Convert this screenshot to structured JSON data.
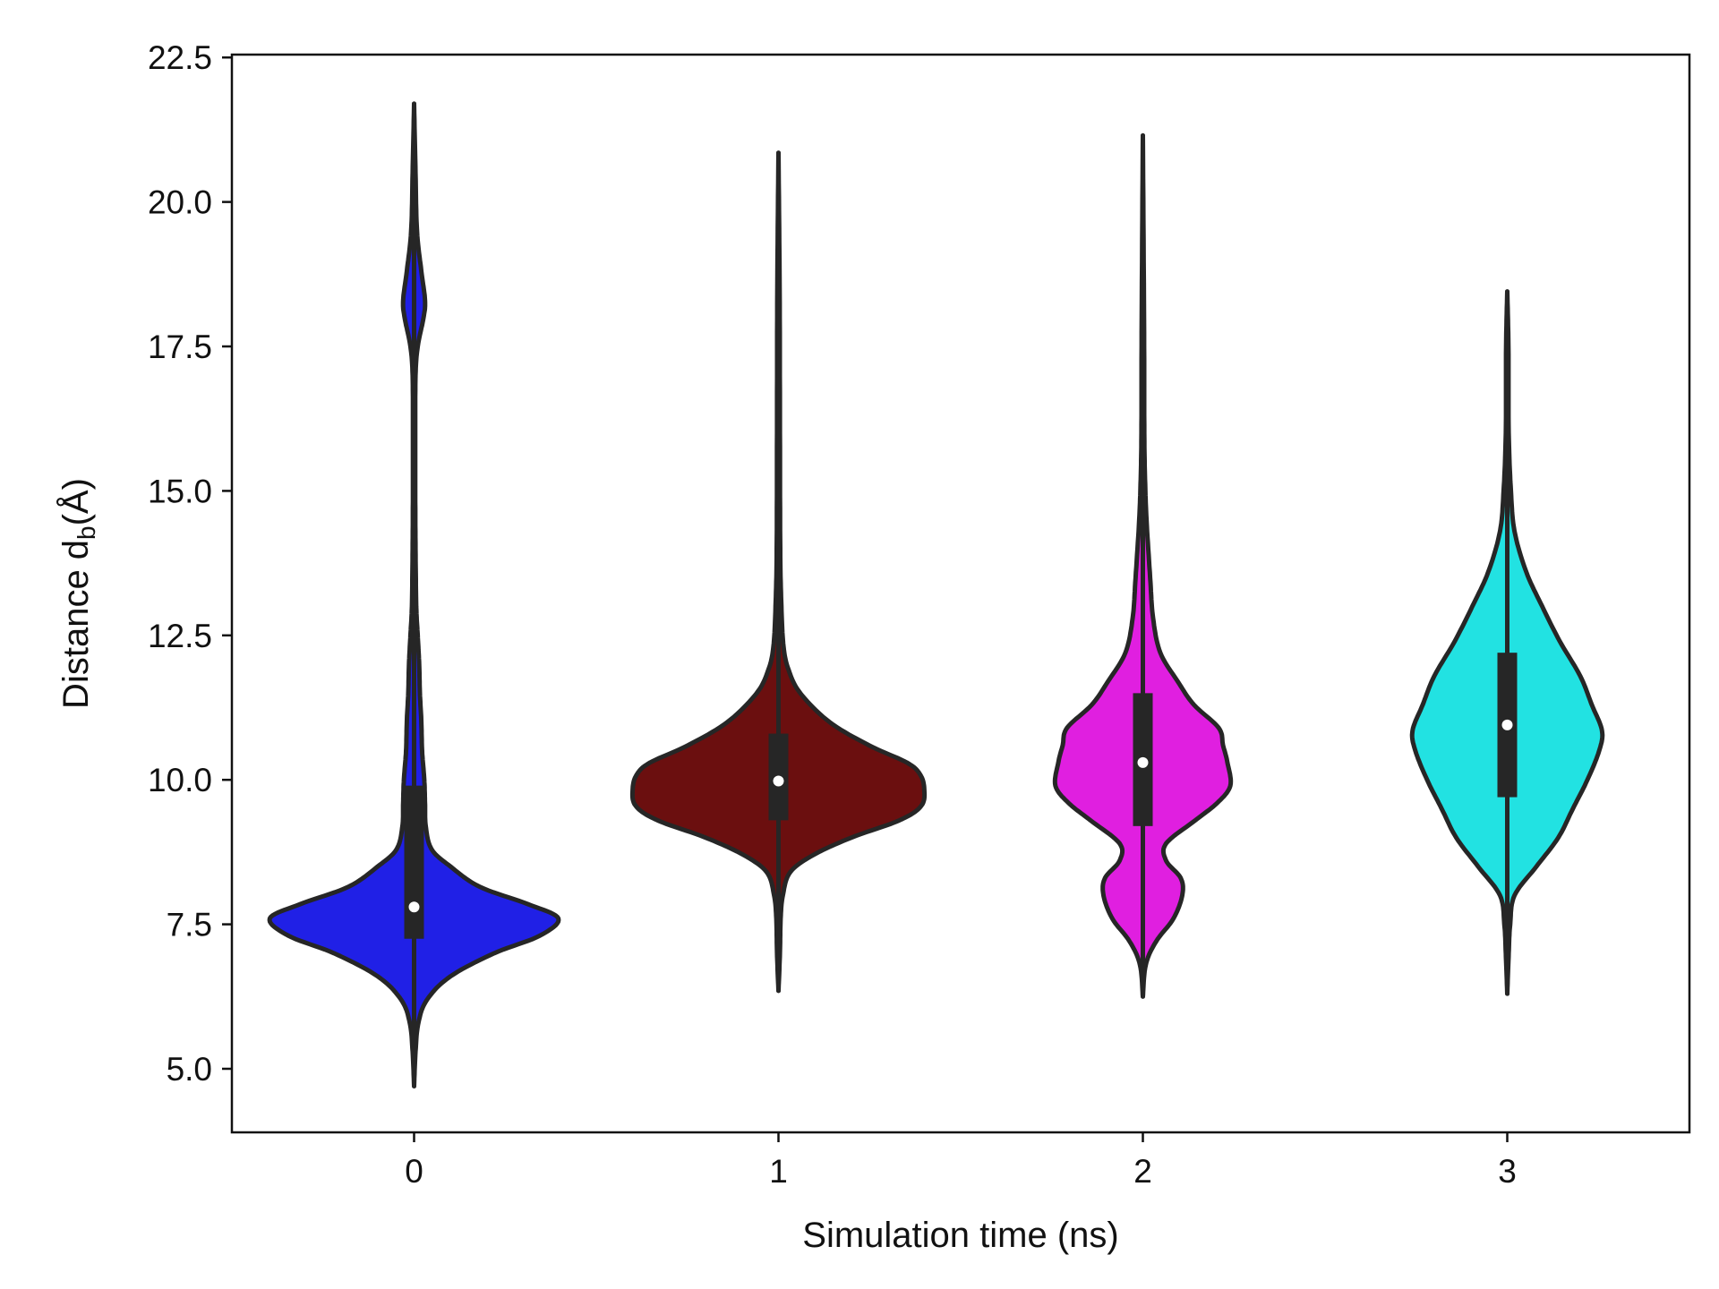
{
  "chart_data": {
    "type": "violin",
    "title": "",
    "xlabel": "Simulation time (ns)",
    "ylabel_main": "Distance d",
    "ylabel_sub": "b",
    "ylabel_unit": "(Å)",
    "ylim": [
      3.9,
      22.55
    ],
    "xlim": [
      -0.5,
      3.5
    ],
    "yticks": [
      5.0,
      7.5,
      10.0,
      12.5,
      15.0,
      17.5,
      20.0,
      22.5
    ],
    "ytick_labels": [
      "5.0",
      "7.5",
      "10.0",
      "12.5",
      "15.0",
      "17.5",
      "20.0",
      "22.5"
    ],
    "categories": [
      "0",
      "1",
      "2",
      "3"
    ],
    "series": [
      {
        "category": "0",
        "color": "#2020e6",
        "min": 4.7,
        "max": 21.7,
        "q1": 7.25,
        "median": 7.8,
        "q3": 9.9,
        "whisker_low": 5.9,
        "whisker_high": 12.6,
        "density": [
          [
            4.7,
            0
          ],
          [
            5.3,
            0.01
          ],
          [
            5.8,
            0.03
          ],
          [
            6.2,
            0.09
          ],
          [
            6.6,
            0.25
          ],
          [
            7.0,
            0.55
          ],
          [
            7.3,
            0.86
          ],
          [
            7.6,
            0.99
          ],
          [
            7.85,
            0.78
          ],
          [
            8.15,
            0.45
          ],
          [
            8.5,
            0.25
          ],
          [
            8.8,
            0.12
          ],
          [
            9.2,
            0.08
          ],
          [
            9.6,
            0.075
          ],
          [
            10.0,
            0.07
          ],
          [
            10.5,
            0.055
          ],
          [
            11.0,
            0.05
          ],
          [
            11.5,
            0.04
          ],
          [
            12.0,
            0.035
          ],
          [
            12.5,
            0.025
          ],
          [
            13.0,
            0.015
          ],
          [
            14.0,
            0.01
          ],
          [
            15.0,
            0.008
          ],
          [
            16.0,
            0.008
          ],
          [
            17.0,
            0.01
          ],
          [
            17.5,
            0.025
          ],
          [
            18.0,
            0.065
          ],
          [
            18.3,
            0.075
          ],
          [
            18.8,
            0.05
          ],
          [
            19.5,
            0.02
          ],
          [
            20.5,
            0.01
          ],
          [
            21.7,
            0
          ]
        ]
      },
      {
        "category": "1",
        "color": "#6b0f0f",
        "min": 6.35,
        "max": 20.85,
        "q1": 9.3,
        "median": 9.98,
        "q3": 10.8,
        "whisker_low": 8.1,
        "whisker_high": 12.4,
        "density": [
          [
            6.35,
            0
          ],
          [
            7.0,
            0.01
          ],
          [
            7.6,
            0.015
          ],
          [
            8.0,
            0.03
          ],
          [
            8.4,
            0.08
          ],
          [
            8.7,
            0.24
          ],
          [
            9.0,
            0.5
          ],
          [
            9.3,
            0.83
          ],
          [
            9.55,
            0.98
          ],
          [
            9.85,
            1.0
          ],
          [
            10.1,
            0.97
          ],
          [
            10.3,
            0.88
          ],
          [
            10.6,
            0.62
          ],
          [
            11.0,
            0.35
          ],
          [
            11.5,
            0.15
          ],
          [
            11.9,
            0.07
          ],
          [
            12.3,
            0.035
          ],
          [
            13.0,
            0.02
          ],
          [
            14.0,
            0.012
          ],
          [
            16.0,
            0.01
          ],
          [
            18.5,
            0.008
          ],
          [
            20.85,
            0
          ]
        ]
      },
      {
        "category": "2",
        "color": "#e01fe0",
        "min": 6.25,
        "max": 21.15,
        "q1": 9.2,
        "median": 10.3,
        "q3": 11.5,
        "whisker_low": 6.9,
        "whisker_high": 14.2,
        "density": [
          [
            6.25,
            0
          ],
          [
            6.8,
            0.02
          ],
          [
            7.2,
            0.09
          ],
          [
            7.6,
            0.21
          ],
          [
            8.0,
            0.27
          ],
          [
            8.3,
            0.26
          ],
          [
            8.6,
            0.16
          ],
          [
            8.9,
            0.16
          ],
          [
            9.3,
            0.36
          ],
          [
            9.6,
            0.51
          ],
          [
            9.9,
            0.6
          ],
          [
            10.3,
            0.58
          ],
          [
            10.6,
            0.55
          ],
          [
            10.9,
            0.52
          ],
          [
            11.3,
            0.35
          ],
          [
            11.7,
            0.24
          ],
          [
            12.2,
            0.12
          ],
          [
            12.8,
            0.07
          ],
          [
            13.5,
            0.05
          ],
          [
            14.5,
            0.025
          ],
          [
            15.2,
            0.015
          ],
          [
            16.0,
            0.01
          ],
          [
            18.0,
            0.008
          ],
          [
            21.15,
            0
          ]
        ]
      },
      {
        "category": "3",
        "color": "#22e2e2",
        "min": 6.3,
        "max": 18.45,
        "q1": 9.7,
        "median": 10.95,
        "q3": 12.2,
        "whisker_low": 8.0,
        "whisker_high": 14.6,
        "density": [
          [
            6.3,
            0
          ],
          [
            7.0,
            0.01
          ],
          [
            7.5,
            0.02
          ],
          [
            8.0,
            0.05
          ],
          [
            8.5,
            0.2
          ],
          [
            9.0,
            0.35
          ],
          [
            9.5,
            0.45
          ],
          [
            10.0,
            0.55
          ],
          [
            10.5,
            0.63
          ],
          [
            10.85,
            0.65
          ],
          [
            11.3,
            0.58
          ],
          [
            11.8,
            0.5
          ],
          [
            12.4,
            0.36
          ],
          [
            13.0,
            0.24
          ],
          [
            13.6,
            0.13
          ],
          [
            14.3,
            0.05
          ],
          [
            15.0,
            0.025
          ],
          [
            16.0,
            0.01
          ],
          [
            17.5,
            0.008
          ],
          [
            18.45,
            0
          ]
        ]
      }
    ],
    "grid": false,
    "legend": "none"
  }
}
